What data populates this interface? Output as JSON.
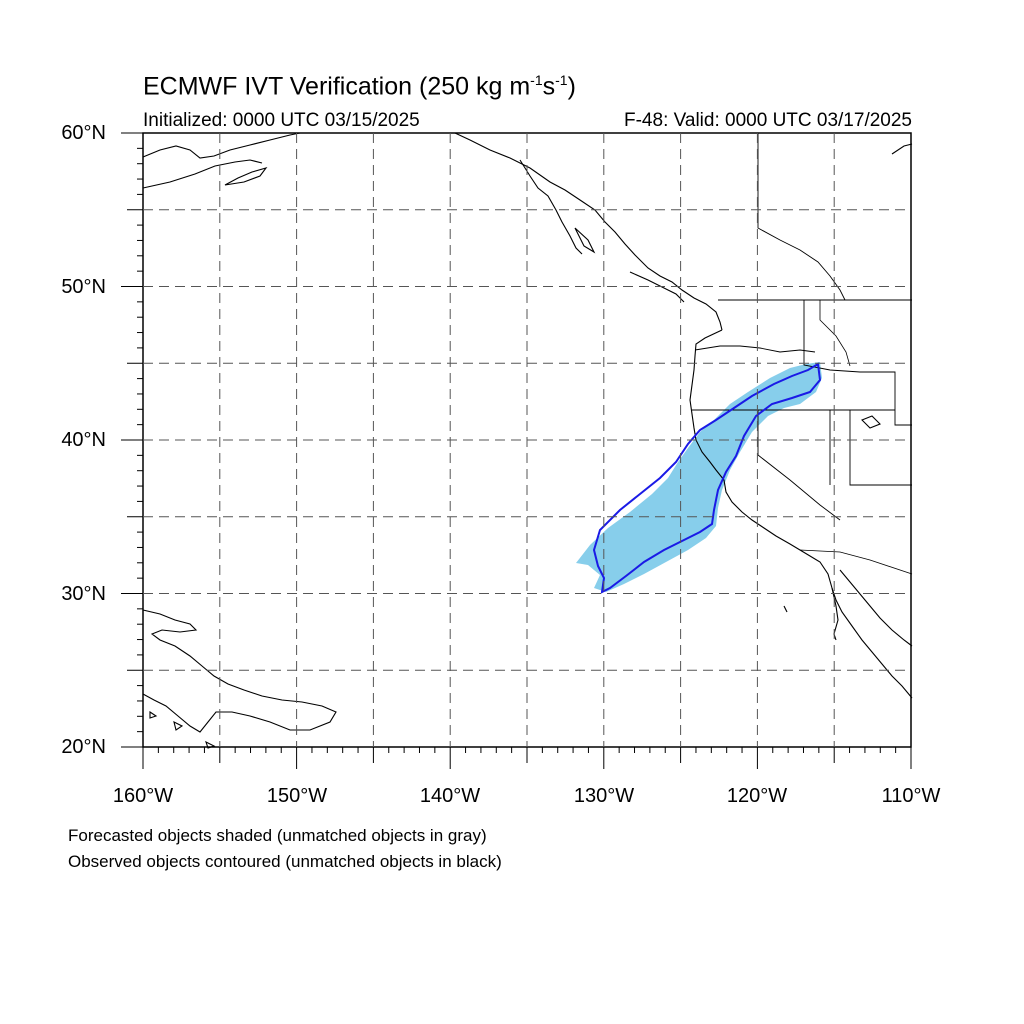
{
  "title": {
    "main": "ECMWF IVT Verification (250 kg m",
    "sup1": "-1",
    "mid": "s",
    "sup2": "-1",
    "end": ")"
  },
  "initialized": "Initialized: 0000 UTC 03/15/2025",
  "valid": "F-48: Valid: 0000 UTC 03/17/2025",
  "lat_labels": [
    "60°N",
    "50°N",
    "40°N",
    "30°N",
    "20°N"
  ],
  "lon_labels": [
    "160°W",
    "150°W",
    "140°W",
    "130°W",
    "120°W",
    "110°W"
  ],
  "footnotes": [
    "Forecasted objects shaded (unmatched objects in gray)",
    "Observed objects contoured (unmatched objects in black)"
  ],
  "map_extent": {
    "lon_min": -160,
    "lon_max": -110,
    "lat_min": 20,
    "lat_max": 60
  },
  "colors": {
    "forecast_object": "#87ceeb",
    "observed_contour": "#1a1ae6",
    "coastline": "#000000",
    "grid": "#555555"
  }
}
